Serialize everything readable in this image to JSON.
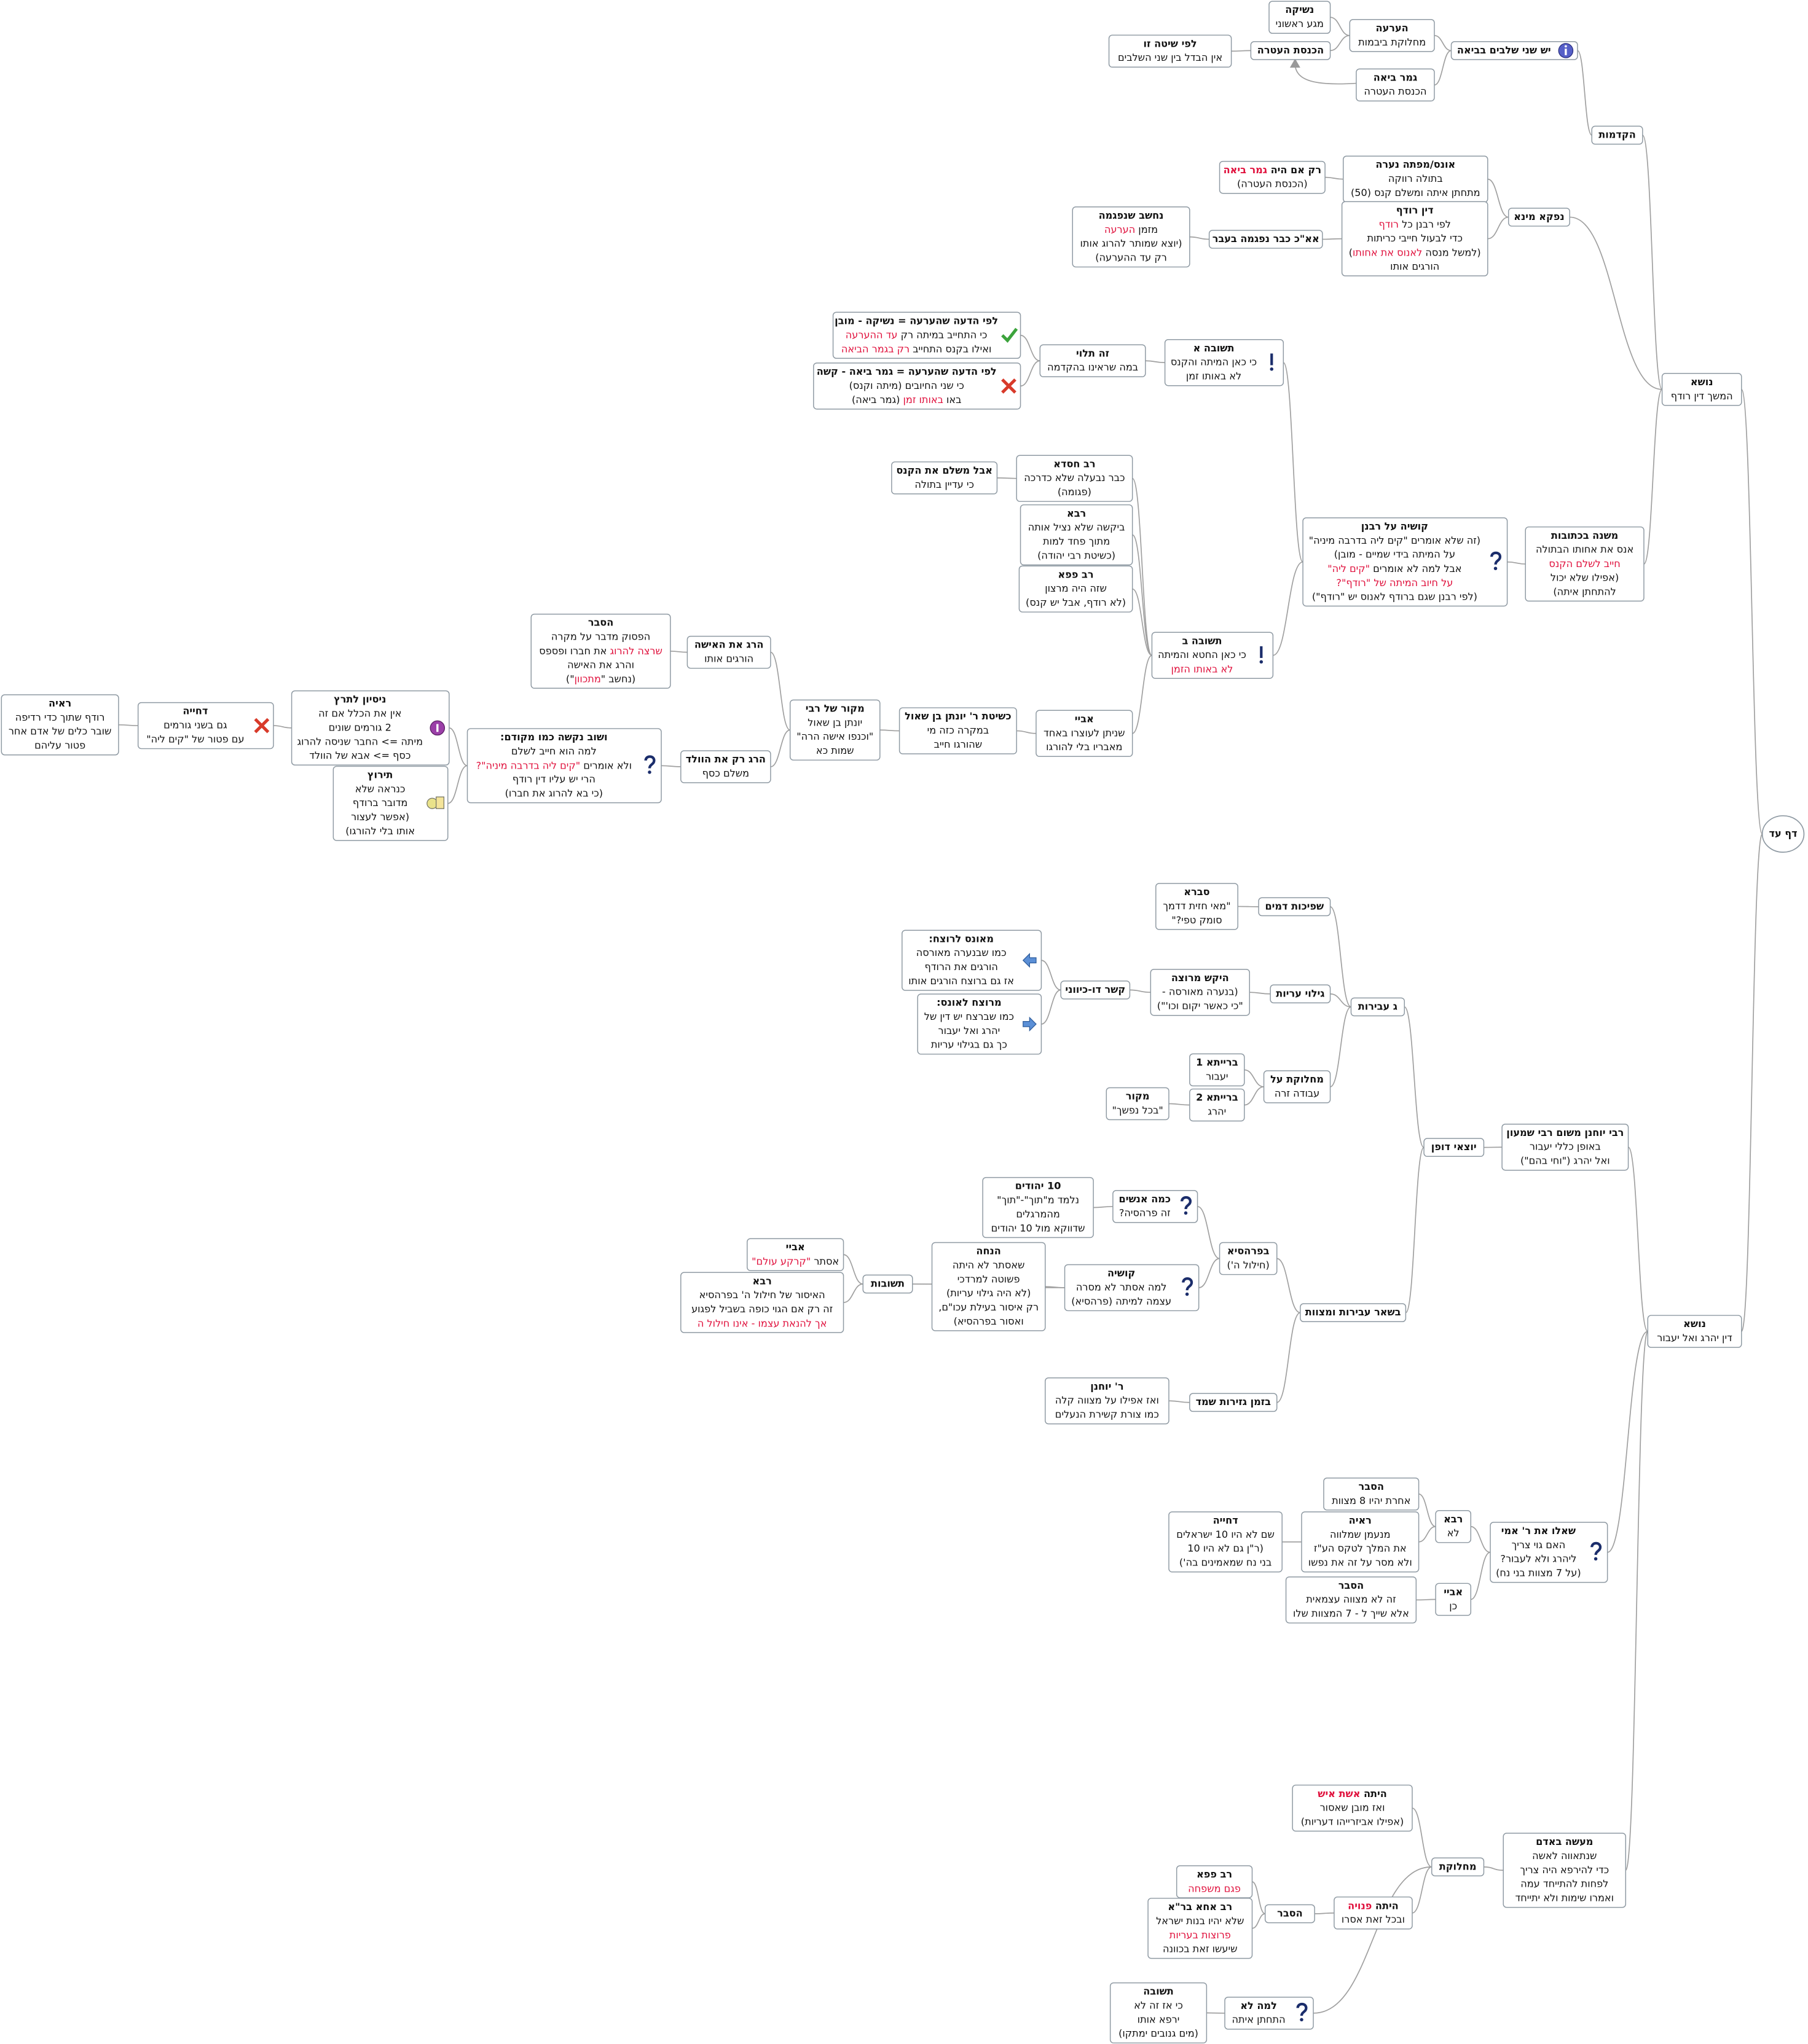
{
  "highlight_color": "#e0103c",
  "nodes": [
    {
      "lines": [
        "דף עד"
      ]
    },
    {
      "lines": [
        "נושא",
        "המשך דין רודף"
      ]
    },
    {
      "lines": [
        "נושא",
        "דין יהרג ואל יעבור"
      ]
    },
    {
      "lines": [
        "הקדמות"
      ]
    },
    {
      "lines": [
        "נפקא מינא"
      ]
    },
    {
      "lines": [
        "משנה בכתובות",
        "אנס את אחותו הבתולה",
        [
          {
            "text": "חייב לשלם הקנס",
            "highlight": true
          }
        ],
        "(אפילו שלא יכול",
        "להתחתן איתה)"
      ]
    },
    {
      "lines": [
        "יש שני שלבים בביאה"
      ]
    },
    {
      "lines": [
        "הערעה",
        "מחלוקת ביבמות"
      ]
    },
    {
      "lines": [
        "נשיקה",
        "מגע ראשוני"
      ]
    },
    {
      "lines": [
        "הכנסת העטרה"
      ]
    },
    {
      "lines": [
        "לפי שיטה זו",
        "אין הבדל בין שני השלבים"
      ]
    },
    {
      "lines": [
        "גמר ביאה",
        "הכנסת העטרה"
      ]
    },
    {
      "lines": [
        "אונס/מפתה נערה",
        "בתולה רווקה",
        "מתחתן איתה ומשלם קנס (50)"
      ]
    },
    {
      "lines": [
        [
          "רק אם היה ",
          {
            "text": "גמר ביאה",
            "highlight": true
          }
        ],
        "(הכנסת העטרה)"
      ]
    },
    {
      "lines": [
        "דין רודף",
        [
          "לפי רבנן כל ",
          {
            "text": "רודף",
            "highlight": true
          }
        ],
        "כדי לבעול חייבי כריתות",
        [
          "(למשל מנסה ",
          {
            "text": "לאנוס את אחותו",
            "highlight": true
          },
          ")"
        ],
        "הורגים אותו"
      ]
    },
    {
      "lines": [
        "אא\"כ כבר נפגמה בעבר"
      ]
    },
    {
      "lines": [
        "נחשב שנפגמה",
        [
          "מזמן ",
          {
            "text": "הערעה",
            "highlight": true
          }
        ],
        "(יוצא שמותר להרוג אותו",
        "רק עד ההערעה)"
      ]
    },
    {
      "lines": [
        "קושיה  על רבנן",
        "(זה שלא אומרים \"קים ליה בדרבה מיניה\"",
        "על המיתה בידי שמיים - מובן)",
        [
          "אבל למה לא אומרים ",
          {
            "text": "\"קים ליה\"",
            "highlight": true
          }
        ],
        [
          {
            "text": "על חיוב המיתה של \"רודף\"?",
            "highlight": true
          }
        ],
        "(לפי רבנן שגם ברודף לאנוס יש \"רודף\")"
      ]
    },
    {
      "lines": [
        "תשובה א",
        "כי כאן המיתה והקנס",
        "לא באותו זמן"
      ]
    },
    {
      "lines": [
        "זה תלוי",
        "במה שראינו בהקדמה"
      ]
    },
    {
      "lines": [
        "לפי הדעה שהערעה = נשיקה - מובן",
        [
          "כי התחייב במיתה רק ",
          {
            "text": "עד ההערעה",
            "highlight": true
          }
        ],
        [
          "ואילו בקנס התחייב ",
          {
            "text": "רק בגמר הביאה",
            "highlight": true
          }
        ]
      ]
    },
    {
      "lines": [
        "לפי הדעה  שהערעה = גמר ביאה - קשה",
        "כי שני החיובים (מיתה וקנס)",
        [
          "באו ",
          {
            "text": "באותו זמן",
            "highlight": true
          },
          " (גמר ביאה)"
        ]
      ]
    },
    {
      "lines": [
        "תשובה ב",
        "כי כאן החטא והמיתה",
        [
          {
            "text": "לא באותו הזמן",
            "highlight": true
          }
        ]
      ]
    },
    {
      "lines": [
        "רב חסדא",
        "כבר נבעלה שלא כדרכה",
        "(פגומה)"
      ]
    },
    {
      "lines": [
        "אבל משלם את הקנס",
        "כי עדיין בתולה"
      ]
    },
    {
      "lines": [
        "רבא",
        "ביקשה שלא נציל אותה",
        "מתוך פחד למות",
        "(כשיטת רבי יהודה)"
      ]
    },
    {
      "lines": [
        "רב פפא",
        "שזה היה מרצון",
        "(לא רודף, אבל יש קנס)"
      ]
    },
    {
      "lines": [
        "אביי",
        "שניתן לעוצרו באחד",
        "מאבריו בלי להורגו"
      ]
    },
    {
      "lines": [
        "כשיטת ר' יונתן בן שאול",
        "במקרה כזה מי",
        "שהורגו חייב"
      ]
    },
    {
      "lines": [
        "מקור של רבי",
        "יונתן בן שאול",
        "\"וכנפו אישה הרה\"",
        "שמות כא"
      ]
    },
    {
      "lines": [
        "הרג את האישה",
        "הורגים אותו"
      ]
    },
    {
      "lines": [
        "הסבר",
        "הפסוק מדבר על מקרה",
        [
          {
            "text": "שרצה להרוג",
            "highlight": true
          },
          " את חברו ופספס"
        ],
        "והרג את האישה",
        [
          "(נחשב \"",
          {
            "text": "מתכוון",
            "highlight": true
          },
          "\")"
        ]
      ]
    },
    {
      "lines": [
        "הרג רק את הוולד",
        "משלם כסף"
      ]
    },
    {
      "lines": [
        "ושוב נקשה כמו מקודם:",
        "למה הוא חייב לשלם",
        [
          "ולא אומרים ",
          {
            "text": "\"קים ליה בדרבה מיניה\"?",
            "highlight": true
          }
        ],
        "הרי יש עליו דין רודף",
        "(כי בא להרוג את חברו)"
      ]
    },
    {
      "lines": [
        "ניסיון לתרץ",
        "אין את הכלל אם זה",
        "2 גורמים שונים",
        "מיתה => החבר שניסה להרוג",
        "כסף => אבא של הוולד"
      ]
    },
    {
      "lines": [
        "דחייה",
        "גם בשני גורמים",
        "עם פטור של \"קים ליה\""
      ]
    },
    {
      "lines": [
        "ראיה",
        "רודף שתוך כדי רדיפה",
        "שובר כלים של אדם אחר",
        "פטור עליהם"
      ]
    },
    {
      "lines": [
        "תירוץ",
        "כנראה שלא",
        "מדובר ברודף",
        "(אפשר לעצור",
        "אותו בלי להורגו)"
      ]
    },
    {
      "lines": [
        "רבי יוחנן משום רבי שמעון",
        "באופן כללי יעבור",
        "ואל יהרג (\"וחי בהם\")"
      ]
    },
    {
      "lines": [
        "יוצאי דופן"
      ]
    },
    {
      "lines": [
        "ג עבירות"
      ]
    },
    {
      "lines": [
        "שפיכות דמים"
      ]
    },
    {
      "lines": [
        "סברא",
        "\"מאי חזית דדמך",
        "סומק טפי?\""
      ]
    },
    {
      "lines": [
        "גילוי עריות"
      ]
    },
    {
      "lines": [
        "היקש מרוצה",
        "(בנערה מאורסה -",
        "\"כי כאשר יקום וכו'\")"
      ]
    },
    {
      "lines": [
        "קשר דו-כיווני"
      ]
    },
    {
      "lines": [
        "מאונס לרוצח:",
        "כמו שבנערה מאורסה",
        "הורגים את הרודף",
        "אז גם ברוצח הורגים אותו"
      ]
    },
    {
      "lines": [
        "מרוצח לאונס:",
        "כמו שברצח יש דין של",
        "יהרג ואל יעבור",
        "כך גם בגילוי עריות"
      ]
    },
    {
      "lines": [
        "מחלוקת על",
        "עבודה זרה"
      ]
    },
    {
      "lines": [
        "ברייתא 1",
        "יעבור"
      ]
    },
    {
      "lines": [
        "ברייתא 2",
        "יהרג"
      ]
    },
    {
      "lines": [
        "מקור",
        "\"בכל נפשך\""
      ]
    },
    {
      "lines": [
        "בשאר עבירות ומצוות"
      ]
    },
    {
      "lines": [
        "בפרהסיא",
        "(חילול ה')"
      ]
    },
    {
      "lines": [
        "כמה אנשים",
        "זה פרהסיה?"
      ]
    },
    {
      "lines": [
        "10 יהודים",
        "נלמד מ\"תוך\"-\"תוך\"",
        "מהמרגלים",
        "שדווקא מול 10 יהודים"
      ]
    },
    {
      "lines": [
        "קושיה",
        "למה אסתר לא מסרה",
        "עצמה למיתה (פרהסיא)"
      ]
    },
    {
      "lines": [
        "תשובות"
      ]
    },
    {
      "lines": [
        "אביי",
        [
          "אסתר ",
          {
            "text": "\"קרקע עולם\"",
            "highlight": true
          }
        ]
      ]
    },
    {
      "lines": [
        "רבא",
        "האיסור של חילול ה' בפרהסיא",
        "זה רק אם הגוי כופה בשביל לפגוע",
        [
          {
            "text": "אך להנאת עצמו - אינו חילול ה",
            "highlight": true
          }
        ]
      ]
    },
    {
      "lines": [
        "הנחה",
        "שאסתר לא היתה",
        "פשוטה למרדכי",
        "(לא היה גילוי עריות)",
        "רק איסור בעילת עכו\"ם,",
        "ואסור בפרהסיא)"
      ]
    },
    {
      "lines": [
        "בזמן גזירות שמד"
      ]
    },
    {
      "lines": [
        "ר' יוחנן",
        "ואז אפילו על מצווה קלה",
        "כמו צורת קשירת הנעלים"
      ]
    },
    {
      "lines": [
        "שאלו את ר' אמי",
        "האם גוי צריך",
        "ליהרג ולא לעבור?",
        "(על 7 מצוות בני נח)"
      ]
    },
    {
      "lines": [
        "רבא",
        "לא"
      ]
    },
    {
      "lines": [
        "הסבר",
        "אחרת יהיו 8 מצוות"
      ]
    },
    {
      "lines": [
        "ראיה",
        "מנעמן שמלווה",
        "את המלך לטקס הע\"ז",
        "ולא מסר על זה את נפשו"
      ]
    },
    {
      "lines": [
        "דחייה",
        "שם לא היו 10 ישראלים",
        "(ר\"ן גם לא היו 10",
        "בני נח שמאמינים בה')"
      ]
    },
    {
      "lines": [
        "אביי",
        "כן"
      ]
    },
    {
      "lines": [
        "הסבר",
        "זה לא מצווה עצמאית",
        "אלא שייך ל - 7 המצוות שלו"
      ]
    },
    {
      "lines": [
        "מעשה באדם",
        "שנתאווה לאשה",
        "כדי להירפא היה צריך",
        "לפחות להתייחד עמה",
        "ואמרו שימות ולא יתייחד"
      ]
    },
    {
      "lines": [
        "מחלוקת"
      ]
    },
    {
      "lines": [
        [
          "היתה ",
          {
            "text": "אשת איש",
            "highlight": true
          }
        ],
        "ואז מובן שאסור",
        "(אפילו אביזרייהו דעריות)"
      ]
    },
    {
      "lines": [
        [
          "היתה ",
          {
            "text": "פנויה",
            "highlight": true
          }
        ],
        "ובכל זאת אסרו"
      ]
    },
    {
      "lines": [
        "הסבר"
      ]
    },
    {
      "lines": [
        "רב פפא",
        [
          {
            "text": "פגם משפחה",
            "highlight": true
          }
        ]
      ]
    },
    {
      "lines": [
        "רב אחא בר\"א",
        "שלא יהיו בנות ישראל",
        [
          {
            "text": "פרוצות בעריות",
            "highlight": true
          }
        ],
        "שיעשו זאת בכוונה"
      ]
    },
    {
      "lines": [
        "למה לא",
        "התחתן איתה"
      ]
    },
    {
      "lines": [
        "תשובה",
        "כי אז זה לא",
        "ירפא אותו",
        "(מים גנובים ימתקו)"
      ]
    }
  ]
}
